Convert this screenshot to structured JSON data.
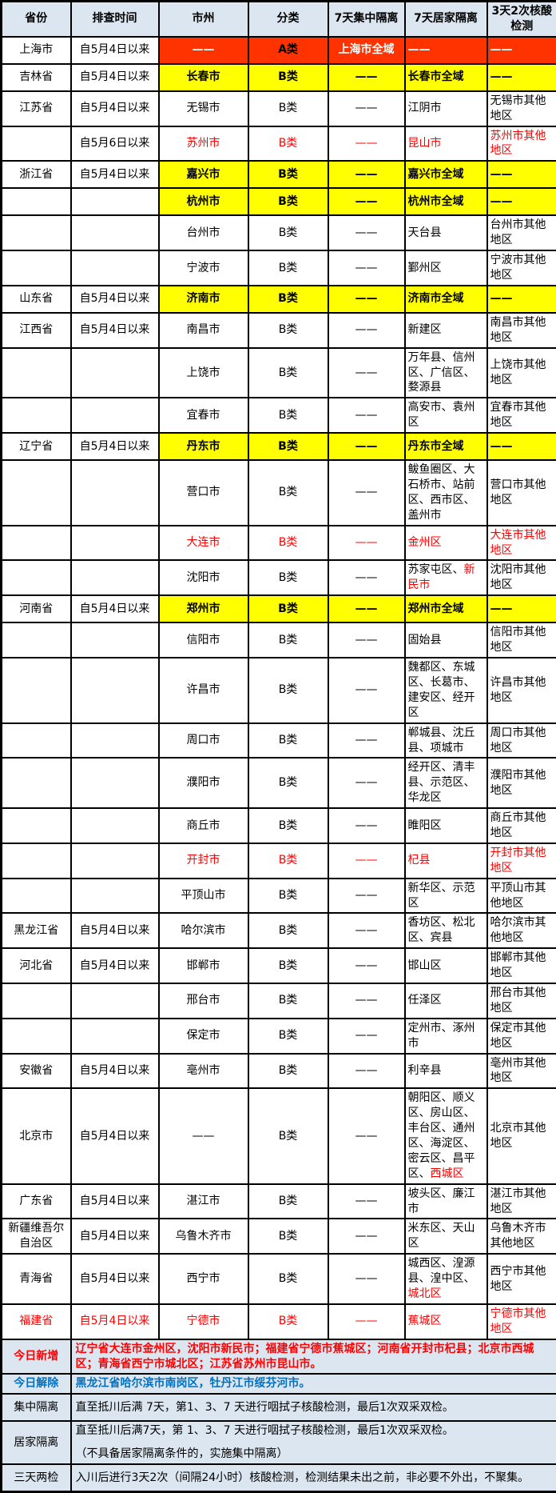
{
  "colors": {
    "red_fill": "#ff3300",
    "yellow_fill": "#ffff00",
    "header_bg": "#dce6f1",
    "footer_bg": "#dce6f1",
    "red_text": "#ff0000",
    "blue_text": "#0070c0"
  },
  "table": {
    "headers": [
      "省份",
      "排查时间",
      "市州",
      "分类",
      "7天集中隔离",
      "7天居家隔离",
      "3天2次核酸检测"
    ],
    "rows": [
      {
        "province": "上海市",
        "time": "自5月4日以来",
        "city": "——",
        "category": "A类",
        "central": "上海市全域",
        "home": "——",
        "test": "——",
        "fill": "red",
        "red_text": ""
      },
      {
        "province": "吉林省",
        "time": "自5月4日以来",
        "city": "长春市",
        "category": "B类",
        "central": "——",
        "home": "长春市全域",
        "test": "——",
        "fill": "yellow",
        "red_text": ""
      },
      {
        "province": "江苏省",
        "time": "自5月4日以来",
        "city": "无锡市",
        "category": "B类",
        "central": "——",
        "home": "江阴市",
        "test": "无锡市其他地区",
        "fill": "",
        "red_text": ""
      },
      {
        "province": "",
        "time": "自5月6日以来",
        "city": "苏州市",
        "category": "B类",
        "central": "——",
        "home": "昆山市",
        "test": "苏州市其他地区",
        "fill": "",
        "red_text": "data"
      },
      {
        "province": "浙江省",
        "time": "自5月4日以来",
        "city": "嘉兴市",
        "category": "B类",
        "central": "——",
        "home": "嘉兴市全域",
        "test": "——",
        "fill": "yellow",
        "red_text": ""
      },
      {
        "province": "",
        "time": "",
        "city": "杭州市",
        "category": "B类",
        "central": "——",
        "home": "杭州市全域",
        "test": "——",
        "fill": "yellow",
        "red_text": ""
      },
      {
        "province": "",
        "time": "",
        "city": "台州市",
        "category": "B类",
        "central": "——",
        "home": "天台县",
        "test": "台州市其他地区",
        "fill": "",
        "red_text": ""
      },
      {
        "province": "",
        "time": "",
        "city": "宁波市",
        "category": "B类",
        "central": "——",
        "home": "鄞州区",
        "test": "宁波市其他地区",
        "fill": "",
        "red_text": ""
      },
      {
        "province": "山东省",
        "time": "自5月4日以来",
        "city": "济南市",
        "category": "B类",
        "central": "——",
        "home": "济南市全域",
        "test": "——",
        "fill": "yellow",
        "red_text": ""
      },
      {
        "province": "江西省",
        "time": "自5月4日以来",
        "city": "南昌市",
        "category": "B类",
        "central": "——",
        "home": "新建区",
        "test": "南昌市其他地区",
        "fill": "",
        "red_text": ""
      },
      {
        "province": "",
        "time": "",
        "city": "上饶市",
        "category": "B类",
        "central": "——",
        "home": "万年县、信州区、广信区、婺源县",
        "test": "上饶市其他地区",
        "fill": "",
        "red_text": ""
      },
      {
        "province": "",
        "time": "",
        "city": "宜春市",
        "category": "B类",
        "central": "——",
        "home": "高安市、袁州区",
        "test": "宜春市其他地区",
        "fill": "",
        "red_text": ""
      },
      {
        "province": "辽宁省",
        "time": "自5月4日以来",
        "city": "丹东市",
        "category": "B类",
        "central": "——",
        "home": "丹东市全域",
        "test": "——",
        "fill": "yellow",
        "red_text": ""
      },
      {
        "province": "",
        "time": "",
        "city": "营口市",
        "category": "B类",
        "central": "——",
        "home": "鲅鱼圈区、大石桥市、站前区、西市区、盖州市",
        "test": "营口市其他地区",
        "fill": "",
        "red_text": "",
        "size": "tall"
      },
      {
        "province": "",
        "time": "",
        "city": "大连市",
        "category": "B类",
        "central": "——",
        "home": "金州区",
        "test": "大连市其他地区",
        "fill": "",
        "red_text": "data"
      },
      {
        "province": "",
        "time": "",
        "city": "沈阳市",
        "category": "B类",
        "central": "——",
        "home": [
          {
            "t": "苏家屯区、",
            "red": false
          },
          {
            "t": "新民市",
            "red": true
          }
        ],
        "test": "沈阳市其他地区",
        "fill": "",
        "red_text": ""
      },
      {
        "province": "河南省",
        "time": "自5月4日以来",
        "city": "郑州市",
        "category": "B类",
        "central": "——",
        "home": "郑州市全域",
        "test": "——",
        "fill": "yellow",
        "red_text": ""
      },
      {
        "province": "",
        "time": "",
        "city": "信阳市",
        "category": "B类",
        "central": "——",
        "home": "固始县",
        "test": "信阳市其他地区",
        "fill": "",
        "red_text": ""
      },
      {
        "province": "",
        "time": "",
        "city": "许昌市",
        "category": "B类",
        "central": "——",
        "home": "魏都区、东城区、长葛市、建安区、经开区",
        "test": "许昌市其他地区",
        "fill": "",
        "red_text": "",
        "size": "tall"
      },
      {
        "province": "",
        "time": "",
        "city": "周口市",
        "category": "B类",
        "central": "——",
        "home": "郸城县、沈丘县、项城市",
        "test": "周口市其他地区",
        "fill": "",
        "red_text": ""
      },
      {
        "province": "",
        "time": "",
        "city": "濮阳市",
        "category": "B类",
        "central": "——",
        "home": "经开区、清丰县、示范区、华龙区",
        "test": "濮阳市其他地区",
        "fill": "",
        "red_text": "",
        "size": "tall"
      },
      {
        "province": "",
        "time": "",
        "city": "商丘市",
        "category": "B类",
        "central": "——",
        "home": "睢阳区",
        "test": "商丘市其他地区",
        "fill": "",
        "red_text": ""
      },
      {
        "province": "",
        "time": "",
        "city": "开封市",
        "category": "B类",
        "central": "——",
        "home": "杞县",
        "test": "开封市其他地区",
        "fill": "",
        "red_text": "data"
      },
      {
        "province": "",
        "time": "",
        "city": "平顶山市",
        "category": "B类",
        "central": "——",
        "home": "新华区、示范区",
        "test": "平顶山市其他地区",
        "fill": "",
        "red_text": ""
      },
      {
        "province": "黑龙江省",
        "time": "自5月4日以来",
        "city": "哈尔滨市",
        "category": "B类",
        "central": "——",
        "home": "香坊区、松北区、宾县",
        "test": "哈尔滨市其他地区",
        "fill": "",
        "red_text": ""
      },
      {
        "province": "河北省",
        "time": "自5月4日以来",
        "city": "邯郸市",
        "category": "B类",
        "central": "——",
        "home": "邯山区",
        "test": "邯郸市其他地区",
        "fill": "",
        "red_text": ""
      },
      {
        "province": "",
        "time": "",
        "city": "邢台市",
        "category": "B类",
        "central": "——",
        "home": "任泽区",
        "test": "邢台市其他地区",
        "fill": "",
        "red_text": ""
      },
      {
        "province": "",
        "time": "",
        "city": "保定市",
        "category": "B类",
        "central": "——",
        "home": "定州市、涿州市",
        "test": "保定市其他地区",
        "fill": "",
        "red_text": ""
      },
      {
        "province": "安徽省",
        "time": "自5月4日以来",
        "city": "亳州市",
        "category": "B类",
        "central": "——",
        "home": "利辛县",
        "test": "亳州市其他地区",
        "fill": "",
        "red_text": ""
      },
      {
        "province": "北京市",
        "time": "自5月4日以来",
        "city": "——",
        "category": "B类",
        "central": "——",
        "home": [
          {
            "t": "朝阳区、顺义区、房山区、丰台区、通州区、海淀区、密云区、昌平区、",
            "red": false
          },
          {
            "t": "西城区",
            "red": true
          }
        ],
        "test": "北京市其他地区",
        "fill": "",
        "red_text": "",
        "size": "tall"
      },
      {
        "province": "广东省",
        "time": "自5月4日以来",
        "city": "湛江市",
        "category": "B类",
        "central": "——",
        "home": "坡头区、廉江市",
        "test": "湛江市其他地区",
        "fill": "",
        "red_text": ""
      },
      {
        "province": "新疆维吾尔自治区",
        "time": "自5月4日以来",
        "city": "乌鲁木齐市",
        "category": "B类",
        "central": "——",
        "home": "米东区、天山区",
        "test": "乌鲁木齐市其他地区",
        "fill": "",
        "red_text": ""
      },
      {
        "province": "青海省",
        "time": "自5月4日以来",
        "city": "西宁市",
        "category": "B类",
        "central": "——",
        "home": [
          {
            "t": "城西区、湟源县、湟中区、",
            "red": false
          },
          {
            "t": "城北区",
            "red": true
          }
        ],
        "test": "西宁市其他地区",
        "fill": "",
        "red_text": "",
        "size": "tall"
      },
      {
        "province": "福建省",
        "time": "自5月4日以来",
        "city": "宁德市",
        "category": "B类",
        "central": "——",
        "home": "蕉城区",
        "test": "宁德市其他地区",
        "fill": "",
        "red_text": "all"
      }
    ]
  },
  "footer": {
    "rows": [
      {
        "label": "今日新增",
        "style": "red",
        "lines": [
          "辽宁省大连市金州区，沈阳市新民市；福建省宁德市蕉城区；河南省开封市杞县；北京市西城区；青海省西宁市城北区；江苏省苏州市昆山市。"
        ]
      },
      {
        "label": "今日解除",
        "style": "blue",
        "size": "thin",
        "lines": [
          "黑龙江省哈尔滨市南岗区，牡丹江市绥芬河市。"
        ]
      },
      {
        "label": "集中隔离",
        "style": "",
        "lines": [
          "直至抵川后满 7天，第1、3、7 天进行咽拭子核酸检测，最后1次双采双检。"
        ]
      },
      {
        "label": "居家隔离",
        "style": "",
        "lines": [
          "直至抵川后满7天，第 1、3、7 天进行咽拭子核酸检测，最后1次双采双检。",
          "（不具备居家隔离条件的，实施集中隔离）"
        ]
      },
      {
        "label": "三天两检",
        "style": "",
        "lines": [
          "入川后进行3天2次（间隔24小时）核酸检测，检测结果未出之前，非必要不外出，不聚集。"
        ]
      }
    ]
  }
}
